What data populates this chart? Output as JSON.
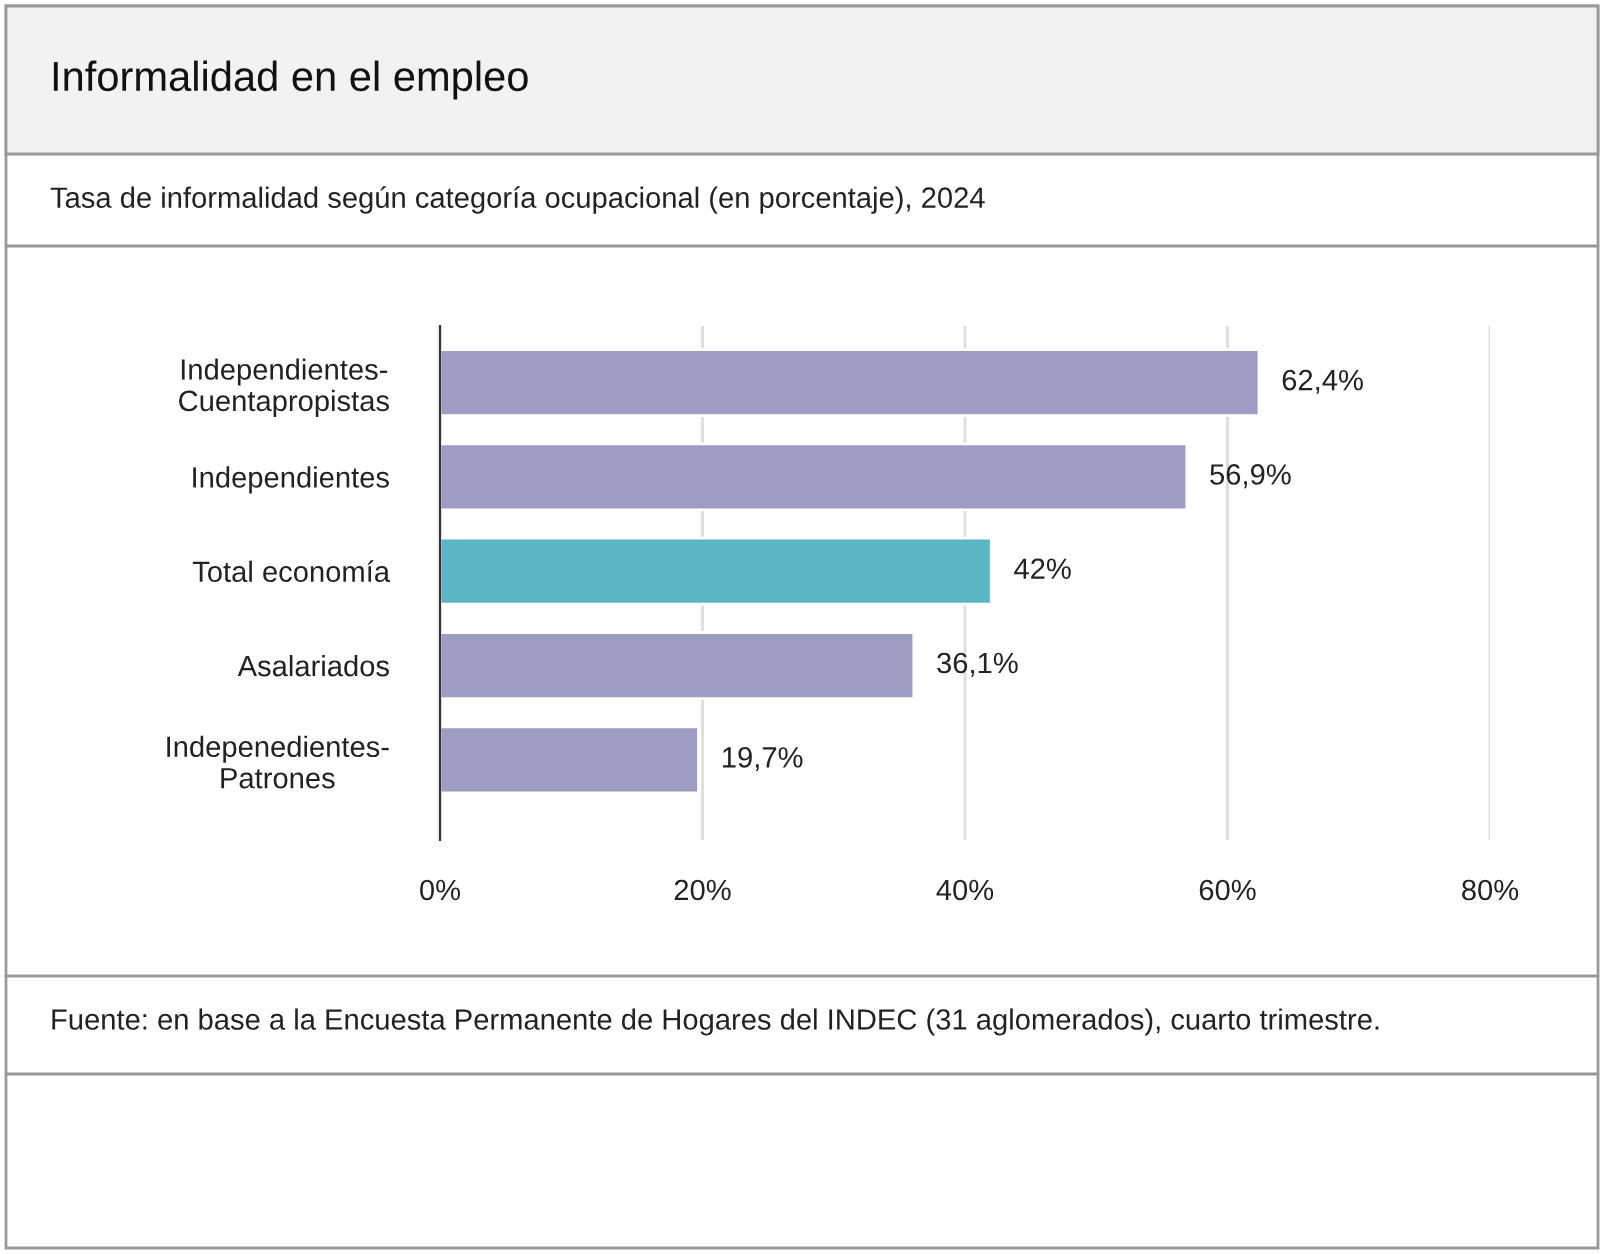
{
  "chart_data": {
    "type": "bar",
    "orientation": "horizontal",
    "title": "Informalidad en el empleo",
    "subtitle": "Tasa de informalidad según categoría ocupacional (en porcentaje), 2024",
    "categories": [
      "Independientes-\nCuentapropistas",
      "Independientes",
      "Total economía",
      "Asalariados",
      "Indepenedientes-\nPatrones"
    ],
    "values": [
      62.4,
      56.9,
      42,
      36.1,
      19.7
    ],
    "colors": [
      "#9e9cc2",
      "#9e9cc2",
      "#5ab5c4",
      "#9e9cc2",
      "#9e9cc2"
    ],
    "value_labels": [
      "62,4%",
      "56,9%",
      "42%",
      "36,1%",
      "19,7%"
    ],
    "xlim": [
      0,
      80
    ],
    "xticks": [
      {
        "value": 0,
        "label": "0%"
      },
      {
        "value": 20,
        "label": "20%"
      },
      {
        "value": 40,
        "label": "40%"
      },
      {
        "value": 60,
        "label": "60%"
      },
      {
        "value": 80,
        "label": "80%"
      }
    ],
    "grid": "x",
    "annotations": [
      "Fuente: en base a la Encuesta Permanente de Hogares del INDEC (31 aglomerados), cuarto trimestre."
    ]
  }
}
